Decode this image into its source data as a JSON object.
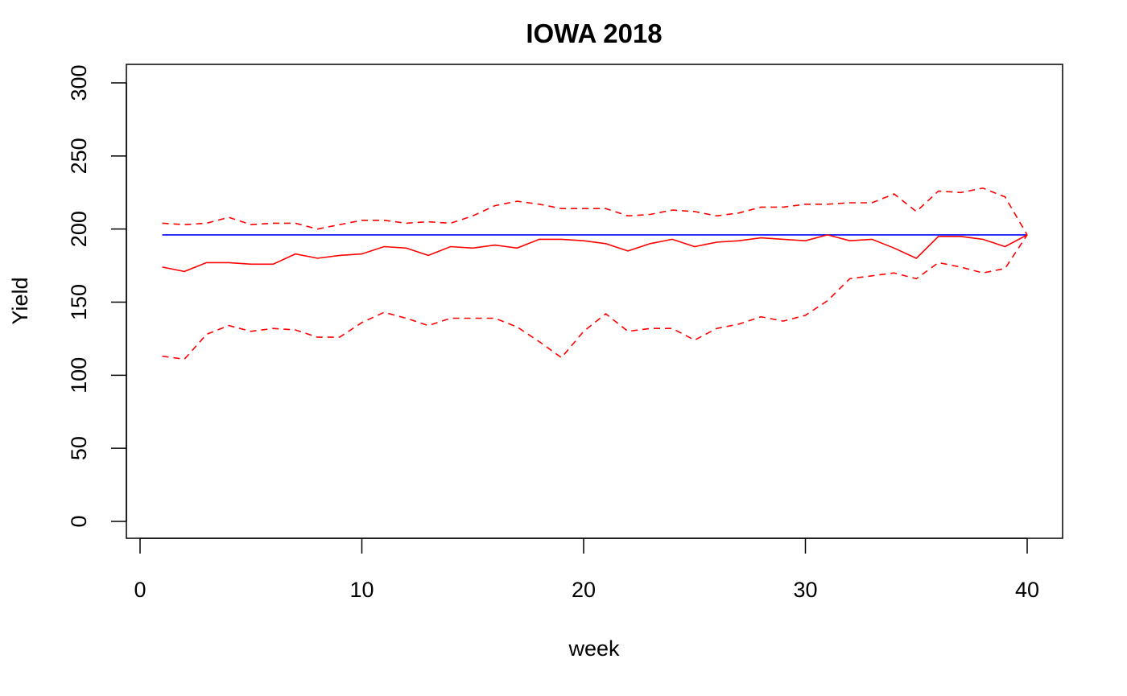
{
  "chart_data": {
    "type": "line",
    "title": "IOWA 2018",
    "xlabel": "week",
    "ylabel": "Yield",
    "xlim": [
      1,
      40
    ],
    "ylim": [
      0,
      300
    ],
    "x_ticks": [
      "0",
      "10",
      "20",
      "30",
      "40"
    ],
    "y_ticks": [
      "0",
      "50",
      "100",
      "150",
      "200",
      "250",
      "300"
    ],
    "grid": false,
    "legend": "none",
    "x": [
      1,
      2,
      3,
      4,
      5,
      6,
      7,
      8,
      9,
      10,
      11,
      12,
      13,
      14,
      15,
      16,
      17,
      18,
      19,
      20,
      21,
      22,
      23,
      24,
      25,
      26,
      27,
      28,
      29,
      30,
      31,
      32,
      33,
      34,
      35,
      36,
      37,
      38,
      39,
      40
    ],
    "series": [
      {
        "style": "solid",
        "color": "#0000ff",
        "values": [
          196,
          196,
          196,
          196,
          196,
          196,
          196,
          196,
          196,
          196,
          196,
          196,
          196,
          196,
          196,
          196,
          196,
          196,
          196,
          196,
          196,
          196,
          196,
          196,
          196,
          196,
          196,
          196,
          196,
          196,
          196,
          196,
          196,
          196,
          196,
          196,
          196,
          196,
          196,
          196
        ]
      },
      {
        "style": "solid",
        "color": "#ff0000",
        "values": [
          174,
          171,
          177,
          177,
          176,
          176,
          183,
          180,
          182,
          183,
          188,
          187,
          182,
          188,
          187,
          189,
          187,
          193,
          193,
          192,
          190,
          185,
          190,
          193,
          188,
          191,
          192,
          194,
          193,
          192,
          196,
          192,
          193,
          187,
          180,
          195,
          195,
          193,
          188,
          196
        ]
      },
      {
        "style": "dashed",
        "color": "#ff0000",
        "values": [
          204,
          203,
          204,
          208,
          203,
          204,
          204,
          200,
          203,
          206,
          206,
          204,
          205,
          204,
          209,
          216,
          219,
          217,
          214,
          214,
          214,
          209,
          210,
          213,
          212,
          209,
          211,
          215,
          215,
          217,
          217,
          218,
          218,
          224,
          212,
          226,
          225,
          228,
          222,
          196
        ]
      },
      {
        "style": "dashed",
        "color": "#ff0000",
        "values": [
          113,
          111,
          128,
          134,
          130,
          132,
          131,
          126,
          126,
          136,
          143,
          139,
          134,
          139,
          139,
          139,
          133,
          123,
          112,
          130,
          142,
          130,
          132,
          132,
          124,
          132,
          135,
          140,
          137,
          141,
          151,
          166,
          168,
          170,
          166,
          177,
          174,
          170,
          173,
          196
        ]
      }
    ]
  }
}
